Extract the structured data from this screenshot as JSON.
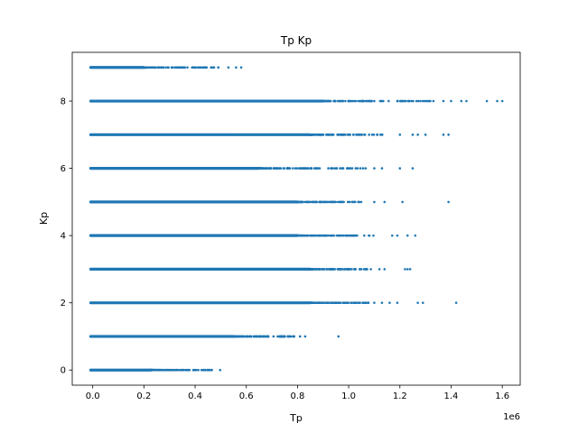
{
  "chart_data": {
    "type": "scatter",
    "title": "Tp Kp",
    "xlabel": "Tp",
    "ylabel": "Kp",
    "x_offset_text": "1e6",
    "x_scale_factor": 1000000,
    "xlim": [
      -0.08,
      1.67
    ],
    "ylim": [
      -0.45,
      9.45
    ],
    "xticks": [
      0.0,
      0.2,
      0.4,
      0.6,
      0.8,
      1.0,
      1.2,
      1.4,
      1.6
    ],
    "xtick_labels": [
      "0.0",
      "0.2",
      "0.4",
      "0.6",
      "0.8",
      "1.0",
      "1.2",
      "1.4",
      "1.6"
    ],
    "yticks": [
      0,
      2,
      4,
      6,
      8
    ],
    "ytick_labels": [
      "0",
      "2",
      "4",
      "6",
      "8"
    ],
    "grid": false,
    "marker_color": "#1f77b4",
    "series": [
      {
        "y": 0,
        "dense_min": -0.01,
        "dense_max": 0.23,
        "sparse_max": 0.5,
        "outliers": []
      },
      {
        "y": 1,
        "dense_min": -0.01,
        "dense_max": 0.55,
        "sparse_max": 0.79,
        "outliers": [
          0.81,
          0.83,
          0.96
        ]
      },
      {
        "y": 2,
        "dense_min": -0.01,
        "dense_max": 0.85,
        "sparse_max": 1.08,
        "outliers": [
          1.1,
          1.13,
          1.16,
          1.19,
          1.27,
          1.29,
          1.42
        ]
      },
      {
        "y": 3,
        "dense_min": -0.01,
        "dense_max": 0.85,
        "sparse_max": 1.09,
        "outliers": [
          1.12,
          1.14,
          1.22,
          1.23,
          1.24
        ]
      },
      {
        "y": 4,
        "dense_min": -0.01,
        "dense_max": 0.8,
        "sparse_max": 1.1,
        "outliers": [
          1.17,
          1.19,
          1.23,
          1.26
        ]
      },
      {
        "y": 5,
        "dense_min": -0.01,
        "dense_max": 0.8,
        "sparse_max": 1.05,
        "outliers": [
          1.1,
          1.14,
          1.21,
          1.39
        ]
      },
      {
        "y": 6,
        "dense_min": -0.01,
        "dense_max": 0.65,
        "sparse_max": 1.07,
        "outliers": [
          1.1,
          1.13,
          1.2,
          1.25
        ]
      },
      {
        "y": 7,
        "dense_min": -0.01,
        "dense_max": 0.85,
        "sparse_max": 1.15,
        "outliers": [
          1.2,
          1.25,
          1.27,
          1.3,
          1.37,
          1.39
        ]
      },
      {
        "y": 8,
        "dense_min": -0.01,
        "dense_max": 0.9,
        "sparse_max": 1.35,
        "outliers": [
          1.37,
          1.4,
          1.44,
          1.46,
          1.54,
          1.58,
          1.6
        ]
      },
      {
        "y": 9,
        "dense_min": -0.01,
        "dense_max": 0.2,
        "sparse_max": 0.5,
        "outliers": [
          0.53,
          0.56,
          0.58
        ]
      }
    ]
  }
}
